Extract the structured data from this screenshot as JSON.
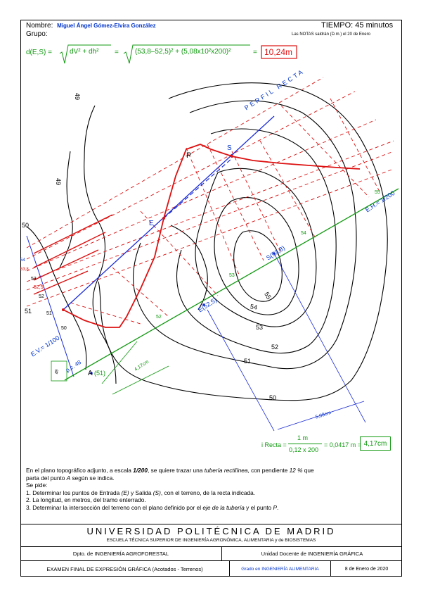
{
  "header": {
    "nombre_label": "Nombre:",
    "nombre_value": "Miguel Ángel Gómez-Elvira González",
    "grupo_label": "Grupo:",
    "tiempo": "TIEMPO: 45 minutos",
    "notas": "Las NOTAS saldrán (D.m.) el 20 de Enero"
  },
  "formula": {
    "lhs": "d(E,S) =",
    "mid": "dV² + dh²",
    "eq": "=",
    "values": "(53,8–52,5)² + (5,08x10²x200)²",
    "eq2": "=",
    "result": "10,24m"
  },
  "drawing": {
    "labels": {
      "perfil_recta": "PERFIL RECTA",
      "eh": "E.H.= 1/200",
      "ev": "E.V.= 1/100",
      "pc": "p.c. 48",
      "a": "A",
      "a51": "(51)",
      "e": "E",
      "e52": "E(52,5)",
      "s": "S",
      "s538": "S(53,8)",
      "p": "P",
      "dist_a": "4,17cm",
      "dist_b": "5,08cm"
    },
    "contour_labels": [
      "49",
      "49",
      "50",
      "50",
      "51",
      "51",
      "52",
      "53",
      "54",
      "55"
    ],
    "green_ticks": [
      "52",
      "53",
      "54",
      "55"
    ],
    "scale_ticks": [
      "54",
      "53,8",
      "53",
      "52,5",
      "52",
      "51",
      "50",
      "49"
    ],
    "colors": {
      "contour": "#000000",
      "pipe_axis": "#1a2bd6",
      "plan_line": "#119911",
      "profile": "#dd1111"
    }
  },
  "irecta": {
    "lhs": "i Recta =",
    "num": "1 m",
    "den": "0,12 x 200",
    "eq": "= 0,0417 m =",
    "result": "4,17cm"
  },
  "statement": {
    "p1a": "En el plano topográfico adjunto, a escala ",
    "p1b": "1/200",
    "p1c": ", se quiere trazar una ",
    "p1d": "tubería rectilínea",
    "p1e": ", con pendiente ",
    "p1f": "12 %",
    "p1g": " que",
    "p2a": "parta del punto ",
    "p2b": "A",
    "p2c": " según se indica.",
    "p3": "Se pide:",
    "i1a": "1.  Determinar los puntos de Entrada ",
    "i1b": "(E)",
    "i1c": " y Salida ",
    "i1d": "(S)",
    "i1e": ", con el terreno, de la recta indicada.",
    "i2": "2.  La longitud, en metros, del tramo enterrado.",
    "i3a": "3.  Determinar la intersección del terreno con el plano definido por el ",
    "i3b": "eje de la tubería",
    "i3c": " y el punto ",
    "i3d": "P",
    "i3e": "."
  },
  "footer": {
    "university": "UNIVERSIDAD POLITÉCNICA DE MADRID",
    "school": "ESCUELA TÉCNICA SUPERIOR DE INGENIERÍA AGRONÓMICA, ALIMENTARIA y de BIOSISTEMAS",
    "dept": "Dpto. de INGENIERÍA AGROFORESTAL",
    "unit": "Unidad Docente de INGENIERÍA GRÁFICA",
    "exam": "EXAMEN FINAL DE EXPRESIÓN GRÁFICA (Acotados - Terrenos)",
    "grado": "Grado en INGENIERÍA ALIMENTARIA",
    "date": "8 de Enero de 2020"
  }
}
